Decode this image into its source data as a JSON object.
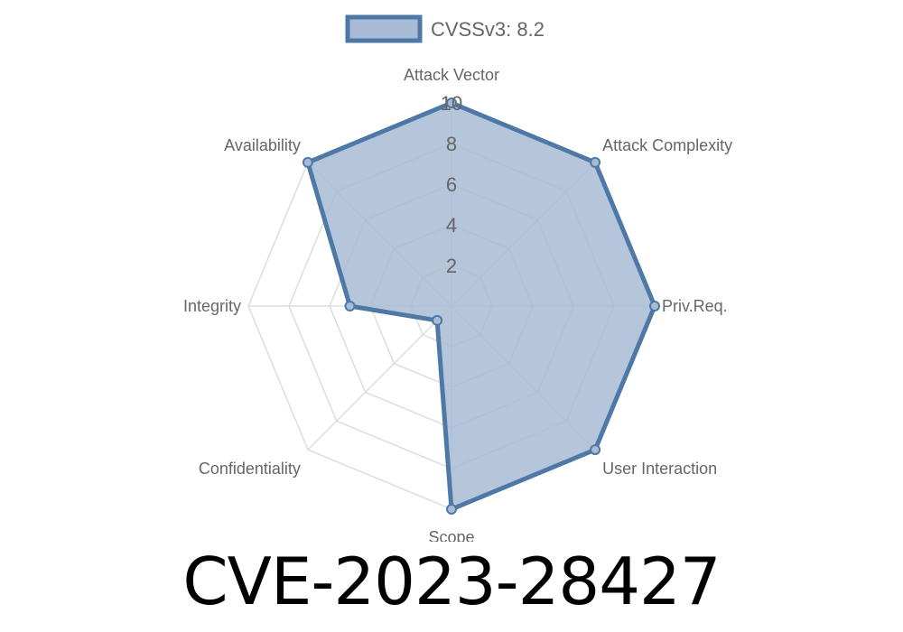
{
  "chart_data": {
    "type": "radar",
    "categories": [
      "Attack Vector",
      "Attack Complexity",
      "Priv.Req.",
      "User Interaction",
      "Scope",
      "Confidentiality",
      "Integrity",
      "Availability"
    ],
    "series": [
      {
        "name": "CVSSv3: 8.2",
        "values": [
          10,
          10,
          10,
          10,
          10,
          1,
          5,
          10
        ]
      }
    ],
    "rlim": [
      0,
      10
    ],
    "ticks": [
      "2",
      "4",
      "6",
      "8",
      "10"
    ],
    "tick_values": [
      2,
      4,
      6,
      8,
      10
    ],
    "legend_position": "top",
    "grid": true,
    "colors": {
      "line": "#4e79a7",
      "fill": "#a8bbd4",
      "grid": "#dddddd"
    }
  },
  "title": "CVE-2023-28427"
}
